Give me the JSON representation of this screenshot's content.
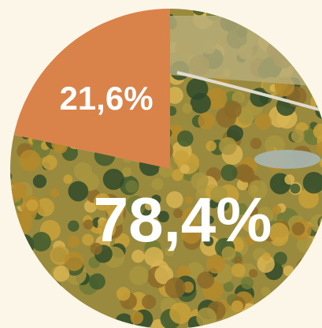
{
  "chart_data": {
    "type": "pie",
    "categories": [
      null,
      null
    ],
    "values": [
      21.6,
      78.4
    ],
    "value_labels": [
      "21,6%",
      "78,4%"
    ],
    "colors": [
      "#d9824a",
      "#9a8a3e"
    ],
    "start_angle": 0,
    "direction": "counterclockwise"
  }
}
